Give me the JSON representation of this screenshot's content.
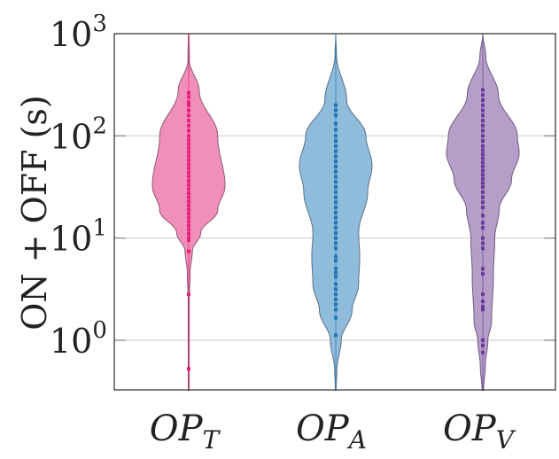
{
  "chart_data": {
    "type": "violin",
    "title": "",
    "ylabel": "ON + OFF (s)",
    "xlabel": "",
    "yscale": "log",
    "ylim": [
      0.327,
      1000
    ],
    "grid": true,
    "yticks": [
      {
        "value": 1,
        "base": "10",
        "exp": "0"
      },
      {
        "value": 10,
        "base": "10",
        "exp": "1"
      },
      {
        "value": 100,
        "base": "10",
        "exp": "2"
      },
      {
        "value": 1000,
        "base": "10",
        "exp": "3"
      }
    ],
    "series": [
      {
        "name": "OP_T",
        "label_main": "OP",
        "label_sub": "T",
        "fill": "#f08fba",
        "edge": "#8c5a72",
        "point_color": "#e8217c",
        "density_log10": [
          [
            3.0,
            0
          ],
          [
            2.97,
            0.01
          ],
          [
            2.74,
            0.02
          ],
          [
            2.44,
            0.29
          ],
          [
            2.0,
            0.8
          ],
          [
            1.51,
            1.0
          ],
          [
            1.27,
            0.8
          ],
          [
            1.05,
            0.33
          ],
          [
            0.87,
            0.1
          ],
          [
            0.67,
            0.04
          ],
          [
            0.4,
            0.015
          ],
          [
            -0.49,
            0.012
          ]
        ],
        "points_log10": [
          2.42,
          2.38,
          2.33,
          2.3,
          2.25,
          2.2,
          2.15,
          2.1,
          2.05,
          2.0,
          1.96,
          1.92,
          1.88,
          1.84,
          1.8,
          1.76,
          1.72,
          1.68,
          1.64,
          1.6,
          1.56,
          1.52,
          1.48,
          1.44,
          1.4,
          1.36,
          1.32,
          1.28,
          1.24,
          1.2,
          1.16,
          1.12,
          1.08,
          1.04,
          1.0,
          0.98,
          0.87,
          0.45,
          -0.28
        ]
      },
      {
        "name": "OP_A",
        "label_main": "OP",
        "label_sub": "A",
        "fill": "#90bcdb",
        "edge": "#5a7088",
        "point_color": "#1f77b4",
        "density_log10": [
          [
            3.0,
            0
          ],
          [
            2.79,
            0.02
          ],
          [
            2.35,
            0.3
          ],
          [
            2.0,
            0.83
          ],
          [
            1.71,
            1.0
          ],
          [
            1.45,
            0.88
          ],
          [
            1.05,
            0.63
          ],
          [
            0.82,
            0.66
          ],
          [
            0.55,
            0.63
          ],
          [
            0.29,
            0.45
          ],
          [
            0.0,
            0.15
          ],
          [
            -0.29,
            0.03
          ],
          [
            -0.49,
            0.01
          ]
        ],
        "points_log10": [
          2.3,
          2.25,
          2.2,
          2.12,
          2.06,
          2.0,
          1.95,
          1.9,
          1.85,
          1.8,
          1.75,
          1.7,
          1.65,
          1.6,
          1.55,
          1.5,
          1.45,
          1.4,
          1.35,
          1.3,
          1.25,
          1.2,
          1.15,
          1.1,
          1.05,
          1.0,
          0.95,
          0.9,
          0.82,
          0.78,
          0.7,
          0.66,
          0.62,
          0.55,
          0.5,
          0.45,
          0.4,
          0.35,
          0.3,
          0.22,
          0.05
        ]
      },
      {
        "name": "OP_V",
        "label_main": "OP",
        "label_sub": "V",
        "fill": "#b59fc8",
        "edge": "#6f5a80",
        "point_color": "#6a3d9a",
        "density_log10": [
          [
            3.0,
            0
          ],
          [
            2.78,
            0.08
          ],
          [
            2.4,
            0.43
          ],
          [
            2.0,
            0.95
          ],
          [
            1.83,
            1.0
          ],
          [
            1.57,
            0.79
          ],
          [
            1.28,
            0.45
          ],
          [
            1.0,
            0.33
          ],
          [
            0.62,
            0.29
          ],
          [
            0.18,
            0.24
          ],
          [
            0.0,
            0.14
          ],
          [
            -0.25,
            0.07
          ],
          [
            -0.49,
            0.02
          ]
        ],
        "points_log10": [
          2.45,
          2.4,
          2.35,
          2.3,
          2.25,
          2.2,
          2.15,
          2.1,
          2.05,
          2.0,
          1.95,
          1.9,
          1.86,
          1.82,
          1.78,
          1.74,
          1.7,
          1.66,
          1.62,
          1.58,
          1.54,
          1.5,
          1.45,
          1.4,
          1.35,
          1.3,
          1.22,
          1.15,
          1.1,
          1.0,
          0.95,
          0.9,
          0.7,
          0.65,
          0.45,
          0.38,
          0.33,
          0.3,
          0.0,
          -0.05,
          -0.12
        ]
      }
    ]
  }
}
